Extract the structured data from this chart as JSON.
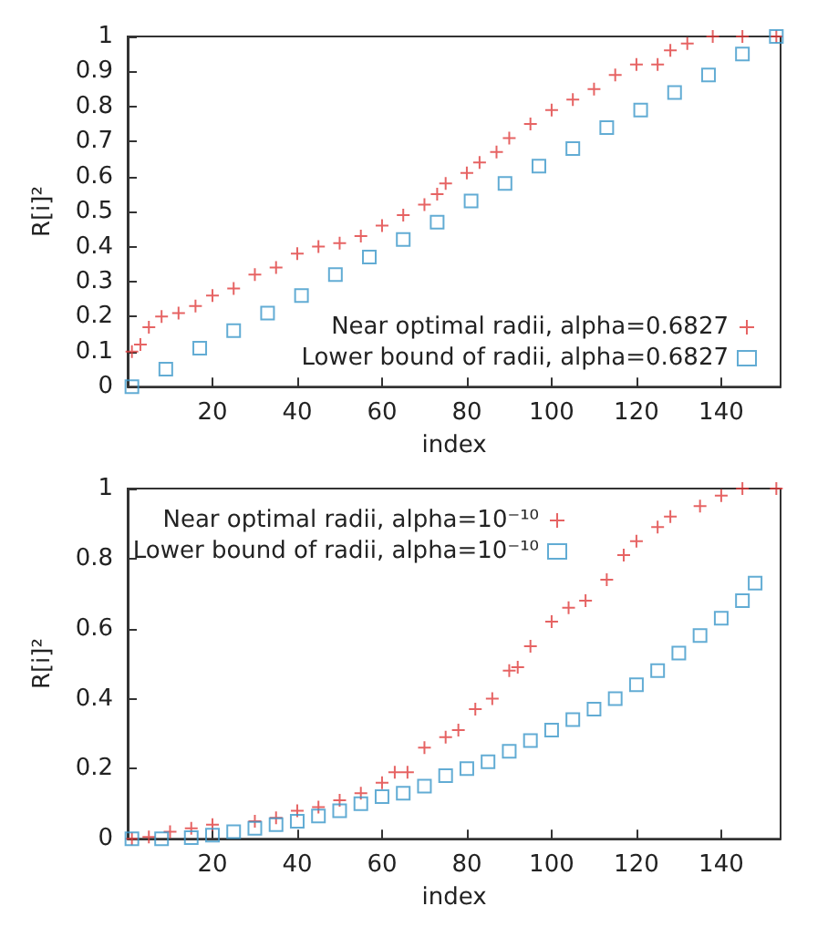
{
  "chart_data": [
    {
      "type": "scatter",
      "xlabel": "index",
      "ylabel": "R[i]²",
      "xlim": [
        0,
        154
      ],
      "xticks": [
        20,
        40,
        60,
        80,
        100,
        120,
        140
      ],
      "ylim": [
        0,
        1
      ],
      "yticks": [
        0,
        0.1,
        0.2,
        0.3,
        0.4,
        0.5,
        0.6,
        0.7,
        0.8,
        0.9,
        1
      ],
      "grid": false,
      "legend": "bottom right",
      "series": [
        {
          "name": "Near optimal radii, alpha=0.6827",
          "color": "#e03c3c",
          "marker": "cross",
          "x": [
            1,
            3,
            5,
            8,
            12,
            16,
            20,
            25,
            30,
            35,
            40,
            45,
            50,
            55,
            60,
            65,
            70,
            73,
            75,
            80,
            83,
            87,
            90,
            95,
            100,
            105,
            110,
            115,
            120,
            125,
            128,
            132,
            138,
            145,
            153
          ],
          "values": [
            0.1,
            0.12,
            0.17,
            0.2,
            0.21,
            0.23,
            0.26,
            0.28,
            0.32,
            0.34,
            0.38,
            0.4,
            0.41,
            0.43,
            0.46,
            0.49,
            0.52,
            0.55,
            0.58,
            0.61,
            0.64,
            0.67,
            0.71,
            0.75,
            0.79,
            0.82,
            0.85,
            0.89,
            0.92,
            0.92,
            0.96,
            0.98,
            1,
            1,
            1
          ]
        },
        {
          "name": "Lower bound of radii, alpha=0.6827",
          "color": "#3b97c9",
          "marker": "square",
          "x": [
            1,
            9,
            17,
            25,
            33,
            41,
            49,
            57,
            65,
            73,
            81,
            89,
            97,
            105,
            113,
            121,
            129,
            137,
            145,
            153
          ],
          "values": [
            0,
            0.05,
            0.11,
            0.16,
            0.21,
            0.26,
            0.32,
            0.37,
            0.42,
            0.47,
            0.53,
            0.58,
            0.63,
            0.68,
            0.74,
            0.79,
            0.84,
            0.89,
            0.95,
            1
          ]
        }
      ]
    },
    {
      "type": "scatter",
      "xlabel": "index",
      "ylabel": "R[i]²",
      "xlim": [
        0,
        154
      ],
      "xticks": [
        20,
        40,
        60,
        80,
        100,
        120,
        140
      ],
      "ylim": [
        0,
        1
      ],
      "yticks": [
        0,
        0.2,
        0.4,
        0.6,
        0.8,
        1
      ],
      "grid": false,
      "legend": "top",
      "series": [
        {
          "name": "Near optimal radii, alpha=10⁻¹⁰",
          "color": "#e03c3c",
          "marker": "cross",
          "x": [
            1,
            5,
            10,
            15,
            20,
            30,
            35,
            40,
            45,
            50,
            55,
            60,
            63,
            66,
            70,
            75,
            78,
            82,
            86,
            90,
            92,
            95,
            100,
            104,
            108,
            113,
            117,
            120,
            125,
            128,
            135,
            140,
            145,
            153
          ],
          "values": [
            0,
            0.005,
            0.02,
            0.03,
            0.04,
            0.05,
            0.06,
            0.08,
            0.09,
            0.11,
            0.13,
            0.16,
            0.19,
            0.19,
            0.26,
            0.29,
            0.31,
            0.37,
            0.4,
            0.48,
            0.49,
            0.55,
            0.62,
            0.66,
            0.68,
            0.74,
            0.81,
            0.85,
            0.89,
            0.92,
            0.95,
            0.98,
            1,
            1
          ]
        },
        {
          "name": "Lower bound of radii, alpha=10⁻¹⁰",
          "color": "#3b97c9",
          "marker": "square",
          "x": [
            1,
            8,
            15,
            20,
            25,
            30,
            35,
            40,
            45,
            50,
            55,
            60,
            65,
            70,
            75,
            80,
            85,
            90,
            95,
            100,
            105,
            110,
            115,
            120,
            125,
            130,
            135,
            140,
            145,
            148
          ],
          "values": [
            0,
            0,
            0.003,
            0.01,
            0.02,
            0.03,
            0.04,
            0.05,
            0.065,
            0.08,
            0.1,
            0.12,
            0.13,
            0.15,
            0.18,
            0.2,
            0.22,
            0.25,
            0.28,
            0.31,
            0.34,
            0.37,
            0.4,
            0.44,
            0.48,
            0.53,
            0.58,
            0.63,
            0.68,
            0.73
          ]
        }
      ]
    }
  ]
}
